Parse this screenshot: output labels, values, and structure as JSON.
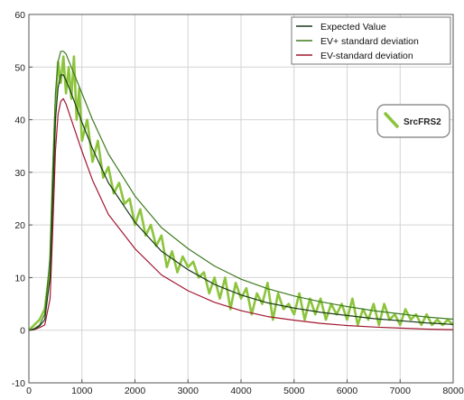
{
  "chart_data": {
    "type": "line",
    "title": "",
    "xlabel": "",
    "ylabel": "",
    "xlim": [
      0,
      8000
    ],
    "ylim": [
      -10,
      60
    ],
    "xticks": [
      0,
      1000,
      2000,
      3000,
      4000,
      5000,
      6000,
      7000,
      8000
    ],
    "yticks": [
      -10,
      0,
      10,
      20,
      30,
      40,
      50,
      60
    ],
    "xtick_labels": [
      "0",
      "1000",
      "2000",
      "3000",
      "4000",
      "5000",
      "6000",
      "7000",
      "8000"
    ],
    "ytick_labels": [
      "-10",
      "0",
      "10",
      "20",
      "30",
      "40",
      "50",
      "60"
    ],
    "grid": true,
    "legend": {
      "placement": "top-right",
      "entries": [
        "Expected Value",
        "EV+ standard deviation",
        "EV-standard deviation"
      ]
    },
    "annotation": {
      "label": "SrcFRS2",
      "placement": "right"
    },
    "series": [
      {
        "name": "Expected Value",
        "color": "#1a3a1a",
        "x": [
          0,
          100,
          200,
          300,
          400,
          450,
          500,
          550,
          600,
          650,
          700,
          800,
          1000,
          1200,
          1500,
          2000,
          2500,
          3000,
          3500,
          4000,
          4500,
          5000,
          5500,
          6000,
          6500,
          7000,
          7500,
          8000
        ],
        "y": [
          0,
          0.2,
          0.8,
          2,
          10,
          25,
          40,
          46,
          48.5,
          48.5,
          47.5,
          45,
          39.5,
          34.5,
          28,
          20.5,
          15,
          11.5,
          8.7,
          6.7,
          5.2,
          4.2,
          3.4,
          2.8,
          2.2,
          1.8,
          1.4,
          1.1
        ]
      },
      {
        "name": "EV+ standard deviation",
        "color": "#3d7a1f",
        "x": [
          0,
          100,
          200,
          300,
          400,
          450,
          500,
          550,
          600,
          650,
          700,
          800,
          1000,
          1200,
          1500,
          2000,
          2500,
          3000,
          3500,
          4000,
          4500,
          5000,
          5500,
          6000,
          6500,
          7000,
          7500,
          8000
        ],
        "y": [
          0,
          0.3,
          1,
          3,
          14,
          30,
          45,
          51,
          53,
          53,
          52.5,
          50,
          45,
          40,
          33.5,
          25.5,
          19.5,
          15.5,
          12.2,
          9.7,
          7.9,
          6.5,
          5.4,
          4.5,
          3.7,
          3.1,
          2.5,
          2.1
        ]
      },
      {
        "name": "EV-standard deviation",
        "color": "#a01830",
        "x": [
          0,
          100,
          200,
          300,
          400,
          450,
          500,
          550,
          600,
          650,
          700,
          800,
          1000,
          1200,
          1500,
          2000,
          2500,
          3000,
          3500,
          4000,
          4500,
          5000,
          5500,
          6000,
          6500,
          7000,
          7500,
          8000
        ],
        "y": [
          0,
          0.1,
          0.5,
          1,
          6,
          19,
          34,
          41,
          43.5,
          44,
          43,
          40,
          34,
          28.5,
          22,
          15.5,
          10.5,
          7.5,
          5.3,
          3.7,
          2.6,
          1.9,
          1.3,
          0.9,
          0.6,
          0.4,
          0.2,
          0.1
        ]
      },
      {
        "name": "SrcFRS2",
        "color": "#8cc43c",
        "x": [
          0,
          100,
          200,
          300,
          400,
          450,
          500,
          550,
          600,
          650,
          700,
          750,
          800,
          850,
          900,
          950,
          1000,
          1100,
          1200,
          1300,
          1400,
          1500,
          1600,
          1700,
          1800,
          1900,
          2000,
          2100,
          2200,
          2300,
          2400,
          2500,
          2600,
          2700,
          2800,
          2900,
          3000,
          3100,
          3200,
          3300,
          3400,
          3500,
          3600,
          3700,
          3800,
          3900,
          4000,
          4100,
          4200,
          4300,
          4400,
          4500,
          4600,
          4700,
          4800,
          4900,
          5000,
          5100,
          5200,
          5300,
          5400,
          5500,
          5600,
          5700,
          5800,
          5900,
          6000,
          6100,
          6200,
          6300,
          6400,
          6500,
          6600,
          6700,
          6800,
          6900,
          7000,
          7100,
          7200,
          7300,
          7400,
          7500,
          7600,
          7700,
          7800,
          7900,
          8000
        ],
        "y": [
          0,
          1,
          2,
          4,
          12,
          28,
          42,
          51,
          47,
          52,
          45,
          50,
          44,
          52,
          40,
          46,
          36,
          40,
          32,
          36,
          29,
          31,
          26,
          28,
          24,
          25,
          20,
          23,
          18,
          20,
          16,
          18,
          12,
          15,
          11,
          14,
          12,
          13,
          10,
          11,
          7,
          10,
          6,
          10,
          4,
          9,
          6,
          8,
          3,
          7,
          5,
          9,
          2,
          7,
          4,
          5,
          3,
          7,
          2,
          6,
          3,
          6,
          2,
          5,
          3,
          5,
          2,
          6,
          1,
          4,
          2,
          5,
          1,
          5,
          2,
          3,
          1,
          4,
          2,
          3,
          1,
          3,
          1,
          2,
          1,
          2,
          1
        ]
      }
    ]
  }
}
